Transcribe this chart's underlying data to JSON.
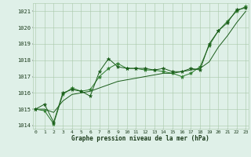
{
  "x": [
    0,
    1,
    2,
    3,
    4,
    5,
    6,
    7,
    8,
    9,
    10,
    11,
    12,
    13,
    14,
    15,
    16,
    17,
    18,
    19,
    20,
    21,
    22,
    23
  ],
  "line_jagged1": [
    1015.0,
    1015.3,
    1014.2,
    1016.0,
    1016.2,
    1016.1,
    1015.8,
    1017.3,
    1018.1,
    1017.6,
    1017.5,
    1017.5,
    1017.5,
    1017.4,
    1017.5,
    1017.3,
    1017.3,
    1017.5,
    1017.4,
    1019.0,
    1019.8,
    1020.3,
    1021.1,
    1021.2
  ],
  "line_jagged2": [
    1015.0,
    1014.9,
    1014.1,
    1015.9,
    1016.3,
    1016.1,
    1016.2,
    1017.0,
    1017.5,
    1017.8,
    1017.5,
    1017.5,
    1017.4,
    1017.4,
    1017.3,
    1017.2,
    1017.0,
    1017.2,
    1017.6,
    1018.9,
    1019.8,
    1020.4,
    1021.0,
    1021.3
  ],
  "line_smooth": [
    1015.0,
    1015.0,
    1014.8,
    1015.5,
    1015.9,
    1016.0,
    1016.1,
    1016.3,
    1016.5,
    1016.7,
    1016.8,
    1016.9,
    1017.0,
    1017.1,
    1017.2,
    1017.2,
    1017.3,
    1017.4,
    1017.5,
    1017.9,
    1018.8,
    1019.5,
    1020.3,
    1021.0
  ],
  "background_color": "#dff0e8",
  "grid_color": "#a8c8a8",
  "line_color_dark": "#1a5c1a",
  "line_color_mid": "#2a7a2a",
  "xlabel": "Graphe pression niveau de la mer (hPa)",
  "ylim_min": 1013.8,
  "ylim_max": 1021.5,
  "xlim_min": -0.3,
  "xlim_max": 23.3,
  "yticks": [
    1014,
    1015,
    1016,
    1017,
    1018,
    1019,
    1020,
    1021
  ],
  "xticks": [
    0,
    1,
    2,
    3,
    4,
    5,
    6,
    7,
    8,
    9,
    10,
    11,
    12,
    13,
    14,
    15,
    16,
    17,
    18,
    19,
    20,
    21,
    22,
    23
  ]
}
